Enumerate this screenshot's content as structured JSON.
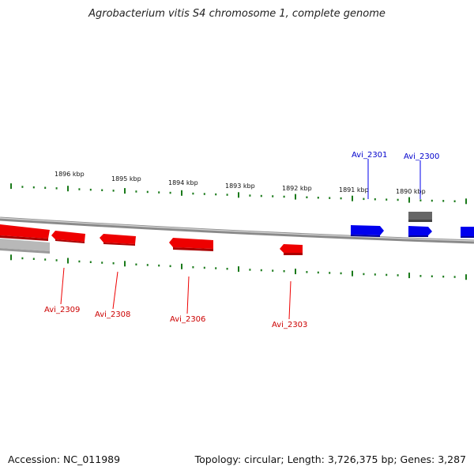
{
  "title": "Agrobacterium vitis S4 chromosome 1, complete genome",
  "accession": "Accession: NC_011989",
  "summary": "Topology: circular; Length: 3,726,375 bp; Genes: 3,287",
  "colors": {
    "forward_gene": "#0000ee",
    "reverse_gene": "#ee0000",
    "other_gene": "#666666",
    "backbone": "#888888",
    "tick": "#1a7a1a"
  },
  "kbp_ticks": [
    "1896 kbp",
    "1895 kbp",
    "1894 kbp",
    "1893 kbp",
    "1892 kbp",
    "1891 kbp",
    "1890 kbp"
  ],
  "gene_labels_top": [
    "Avi_2301",
    "Avi_2300"
  ],
  "gene_labels_bottom": [
    "Avi_2309",
    "Avi_2308",
    "Avi_2306",
    "Avi_2303"
  ]
}
